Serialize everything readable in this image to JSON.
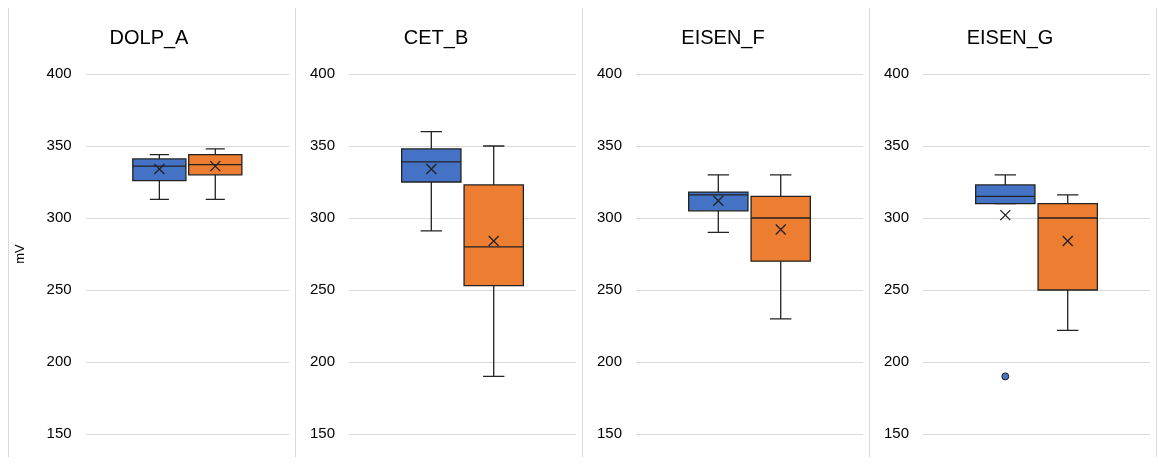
{
  "chart_data": [
    {
      "type": "box",
      "title": "DOLP_A",
      "ylabel": "mV",
      "categories": [
        null
      ],
      "ylim": [
        150,
        400
      ],
      "yticks": [
        150,
        200,
        250,
        300,
        350,
        400
      ],
      "grid": "y",
      "series": [
        {
          "color": "#4472c4",
          "boxes": [
            {
              "low": 313,
              "q1": 326,
              "median": 336,
              "q3": 341,
              "high": 344,
              "mean": 334
            }
          ]
        },
        {
          "color": "#ed7d31",
          "boxes": [
            {
              "low": 313,
              "q1": 330,
              "median": 337,
              "q3": 344,
              "high": 348,
              "mean": 336
            }
          ]
        }
      ]
    },
    {
      "type": "box",
      "title": "CET_B",
      "categories": [
        null
      ],
      "ylim": [
        150,
        400
      ],
      "yticks": [
        150,
        200,
        250,
        300,
        350,
        400
      ],
      "grid": "y",
      "series": [
        {
          "color": "#4472c4",
          "boxes": [
            {
              "low": 291,
              "q1": 325,
              "median": 339,
              "q3": 348,
              "high": 360,
              "mean": 334
            }
          ]
        },
        {
          "color": "#ed7d31",
          "boxes": [
            {
              "low": 190,
              "q1": 253,
              "median": 280,
              "q3": 323,
              "high": 350,
              "mean": 284
            }
          ]
        }
      ]
    },
    {
      "type": "box",
      "title": "EISEN_F",
      "categories": [
        null
      ],
      "ylim": [
        150,
        400
      ],
      "yticks": [
        150,
        200,
        250,
        300,
        350,
        400
      ],
      "grid": "y",
      "series": [
        {
          "color": "#4472c4",
          "boxes": [
            {
              "low": 290,
              "q1": 305,
              "median": 316,
              "q3": 318,
              "high": 330,
              "mean": 312
            }
          ]
        },
        {
          "color": "#ed7d31",
          "boxes": [
            {
              "low": 230,
              "q1": 270,
              "median": 300,
              "q3": 315,
              "high": 330,
              "mean": 292
            }
          ]
        }
      ]
    },
    {
      "type": "box",
      "title": "EISEN_G",
      "categories": [
        null
      ],
      "ylim": [
        150,
        400
      ],
      "yticks": [
        150,
        200,
        250,
        300,
        350,
        400
      ],
      "grid": "y",
      "series": [
        {
          "color": "#4472c4",
          "boxes": [
            {
              "low": 310,
              "q1": 310,
              "median": 315,
              "q3": 323,
              "high": 330,
              "mean": 302,
              "outliers": [
                190
              ]
            }
          ]
        },
        {
          "color": "#ed7d31",
          "boxes": [
            {
              "low": 222,
              "q1": 250,
              "median": 300,
              "q3": 310,
              "high": 316,
              "mean": 284
            }
          ]
        }
      ]
    }
  ]
}
